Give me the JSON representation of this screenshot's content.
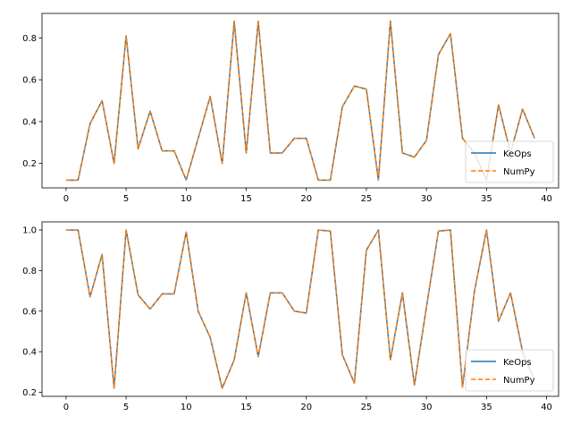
{
  "chart_data": [
    {
      "type": "line",
      "x": [
        0,
        1,
        2,
        3,
        4,
        5,
        6,
        7,
        8,
        9,
        10,
        11,
        12,
        13,
        14,
        15,
        16,
        17,
        18,
        19,
        20,
        21,
        22,
        23,
        24,
        25,
        26,
        27,
        28,
        29,
        30,
        31,
        32,
        33,
        34,
        35,
        36,
        37,
        38,
        39
      ],
      "series": [
        {
          "name": "KeOps",
          "color": "#1f77b4",
          "style": "solid",
          "values": [
            0.12,
            0.12,
            0.39,
            0.5,
            0.2,
            0.81,
            0.27,
            0.45,
            0.26,
            0.26,
            0.12,
            0.32,
            0.52,
            0.2,
            0.88,
            0.25,
            0.88,
            0.25,
            0.25,
            0.32,
            0.32,
            0.12,
            0.12,
            0.47,
            0.57,
            0.555,
            0.12,
            0.88,
            0.25,
            0.23,
            0.31,
            0.72,
            0.82,
            0.32,
            0.25,
            0.12,
            0.48,
            0.25,
            0.46,
            0.32
          ]
        },
        {
          "name": "NumPy",
          "color": "#ff7f0e",
          "style": "dashed",
          "values": [
            0.12,
            0.12,
            0.39,
            0.5,
            0.2,
            0.81,
            0.27,
            0.45,
            0.26,
            0.26,
            0.12,
            0.32,
            0.52,
            0.2,
            0.88,
            0.25,
            0.88,
            0.25,
            0.25,
            0.32,
            0.32,
            0.12,
            0.12,
            0.47,
            0.57,
            0.555,
            0.12,
            0.88,
            0.25,
            0.23,
            0.31,
            0.72,
            0.82,
            0.32,
            0.25,
            0.12,
            0.48,
            0.25,
            0.46,
            0.32
          ]
        }
      ],
      "xlim": [
        -2,
        41
      ],
      "ylim": [
        0.083,
        0.917
      ],
      "xticks": [
        0,
        5,
        10,
        15,
        20,
        25,
        30,
        35,
        40
      ],
      "yticks": [
        0.2,
        0.4,
        0.6,
        0.8
      ],
      "ytick_labels": [
        "0.2",
        "0.4",
        "0.6",
        "0.8"
      ],
      "legend": "lower-right",
      "grid": false
    },
    {
      "type": "line",
      "x": [
        0,
        1,
        2,
        3,
        4,
        5,
        6,
        7,
        8,
        9,
        10,
        11,
        12,
        13,
        14,
        15,
        16,
        17,
        18,
        19,
        20,
        21,
        22,
        23,
        24,
        25,
        26,
        27,
        28,
        29,
        30,
        31,
        32,
        33,
        34,
        35,
        36,
        37,
        38,
        39
      ],
      "series": [
        {
          "name": "KeOps",
          "color": "#1f77b4",
          "style": "solid",
          "values": [
            1.0,
            1.0,
            0.67,
            0.88,
            0.22,
            1.0,
            0.68,
            0.61,
            0.685,
            0.685,
            0.99,
            0.6,
            0.47,
            0.22,
            0.36,
            0.69,
            0.375,
            0.69,
            0.69,
            0.6,
            0.59,
            1.0,
            0.995,
            0.385,
            0.245,
            0.9,
            1.0,
            0.36,
            0.69,
            0.235,
            0.62,
            0.995,
            1.0,
            0.225,
            0.7,
            1.0,
            0.55,
            0.69,
            0.4,
            0.26
          ]
        },
        {
          "name": "NumPy",
          "color": "#ff7f0e",
          "style": "dashed",
          "values": [
            1.0,
            1.0,
            0.67,
            0.88,
            0.22,
            1.0,
            0.68,
            0.61,
            0.685,
            0.685,
            0.99,
            0.6,
            0.47,
            0.22,
            0.36,
            0.69,
            0.375,
            0.69,
            0.69,
            0.6,
            0.59,
            1.0,
            0.995,
            0.385,
            0.245,
            0.9,
            1.0,
            0.36,
            0.69,
            0.235,
            0.62,
            0.995,
            1.0,
            0.225,
            0.7,
            1.0,
            0.55,
            0.69,
            0.4,
            0.26
          ]
        }
      ],
      "xlim": [
        -2,
        41
      ],
      "ylim": [
        0.18,
        1.04
      ],
      "xticks": [
        0,
        5,
        10,
        15,
        20,
        25,
        30,
        35,
        40
      ],
      "yticks": [
        0.2,
        0.4,
        0.6,
        0.8,
        1.0
      ],
      "ytick_labels": [
        "0.2",
        "0.4",
        "0.6",
        "0.8",
        "1.0"
      ],
      "legend": "lower-right",
      "grid": false
    }
  ]
}
